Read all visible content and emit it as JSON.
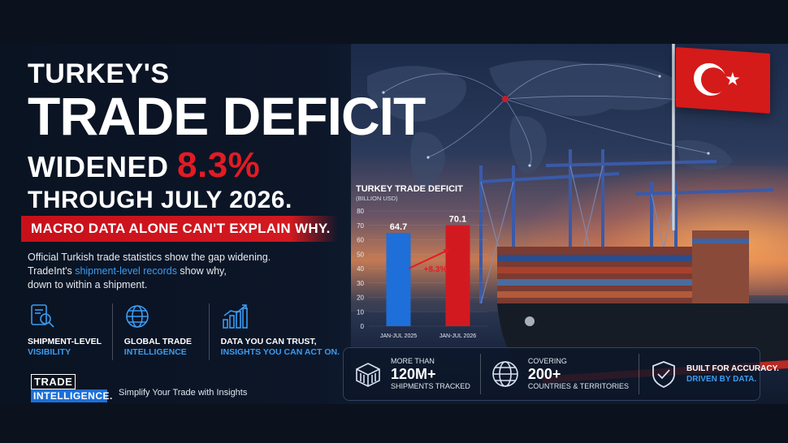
{
  "headline": {
    "line1": "TURKEY'S",
    "line2": "TRADE DEFICIT",
    "line3_prefix": "WIDENED ",
    "line3_highlight": "8.3%",
    "line4": "THROUGH JULY 2026."
  },
  "banner": "MACRO DATA ALONE CAN'T EXPLAIN WHY.",
  "body": {
    "line1": "Official Turkish trade statistics show the gap widening.",
    "line2_prefix": "TradeInt's ",
    "line2_link": "shipment-level records",
    "line2_suffix": " show why,",
    "line3": "down to within a shipment."
  },
  "features": [
    {
      "icon": "document-search-icon",
      "l1": "SHIPMENT-LEVEL",
      "l2": "VISIBILITY"
    },
    {
      "icon": "globe-icon",
      "l1": "GLOBAL TRADE",
      "l2": "INTELLIGENCE"
    },
    {
      "icon": "bar-growth-icon",
      "l1": "DATA YOU CAN TRUST,",
      "l2": "INSIGHTS YOU CAN ACT ON."
    }
  ],
  "logo": {
    "top": "TRADE",
    "bottom": "INTELLIGENCE."
  },
  "tagline": "Simplify Your Trade with Insights",
  "colors": {
    "accent_red": "#e31b23",
    "accent_blue": "#3a9cf2",
    "bar_blue": "#1e6fd9",
    "bar_red": "#d31920"
  },
  "chart_data": {
    "type": "bar",
    "title": "TURKEY TRADE DEFICIT",
    "ylabel": "(BILLION USD)",
    "categories": [
      "JAN-JUL 2025",
      "JAN-JUL 2026"
    ],
    "values": [
      64.7,
      70.1
    ],
    "value_labels": [
      "64.7",
      "70.1"
    ],
    "bar_colors": [
      "#1e6fd9",
      "#d31920"
    ],
    "ylim": [
      0,
      80
    ],
    "yticks": [
      0,
      10,
      20,
      30,
      40,
      50,
      60,
      70,
      80
    ],
    "annotation": "+8.3%",
    "grid": true
  },
  "stats": [
    {
      "icon": "container-icon",
      "small": "MORE THAN",
      "big": "120M+",
      "label": "SHIPMENTS TRACKED"
    },
    {
      "icon": "globe-icon",
      "small": "COVERING",
      "big": "200+",
      "label": "COUNTRIES & TERRITORIES"
    },
    {
      "icon": "shield-check-icon",
      "line1": "BUILT FOR ACCURACY.",
      "line2": "DRIVEN BY DATA."
    }
  ]
}
